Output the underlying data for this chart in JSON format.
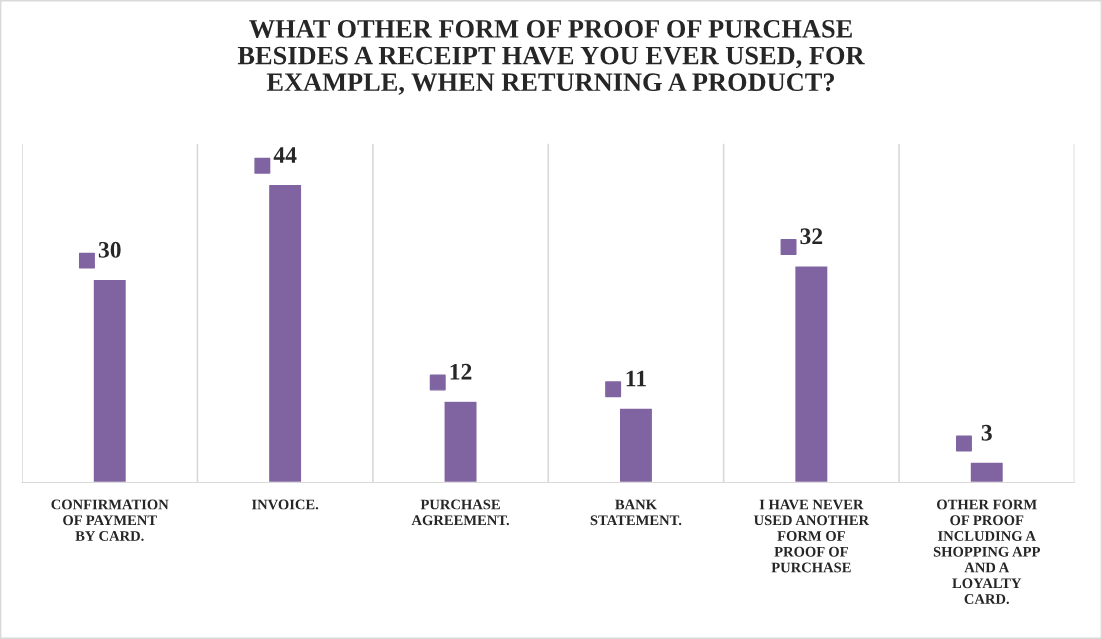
{
  "chart_data": {
    "type": "bar",
    "title": "WHAT OTHER FORM OF PROOF OF PURCHASE\nBESIDES A RECEIPT HAVE YOU EVER USED, FOR\nEXAMPLE, WHEN RETURNING A PRODUCT?",
    "categories": [
      "CONFIRMATION\nOF PAYMENT\nBY CARD.",
      "INVOICE.",
      "PURCHASE\nAGREEMENT.",
      "BANK\nSTATEMENT.",
      "I HAVE NEVER\nUSED ANOTHER\nFORM OF\nPROOF OF\nPURCHASE",
      "OTHER FORM\nOF PROOF\nINCLUDING A\nSHOPPING APP\nAND A\nLOYALTY\nCARD."
    ],
    "values": [
      30,
      44,
      12,
      11,
      32,
      3
    ],
    "color": "#8064a2",
    "ylim": [
      0,
      50
    ],
    "data_labels": true,
    "grid": "x",
    "tick_labels": "x"
  }
}
